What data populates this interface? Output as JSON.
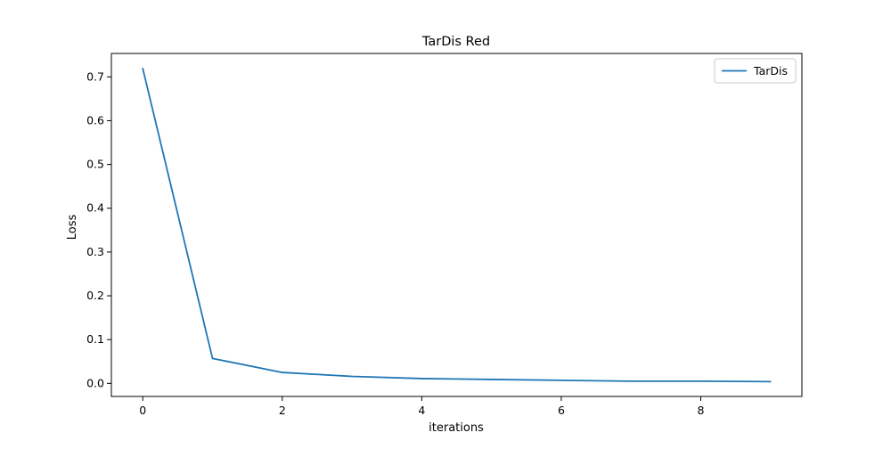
{
  "chart_data": {
    "type": "line",
    "title": "TarDis Red",
    "xlabel": "iterations",
    "ylabel": "Loss",
    "xlim": [
      -0.45,
      9.45
    ],
    "ylim": [
      -0.0298,
      0.7535
    ],
    "x_ticks": [
      0,
      2,
      4,
      6,
      8
    ],
    "x_tick_labels": [
      "0",
      "2",
      "4",
      "6",
      "8"
    ],
    "y_ticks": [
      0.0,
      0.1,
      0.2,
      0.3,
      0.4,
      0.5,
      0.6,
      0.7
    ],
    "y_tick_labels": [
      "0.0",
      "0.1",
      "0.2",
      "0.3",
      "0.4",
      "0.5",
      "0.6",
      "0.7"
    ],
    "grid": false,
    "legend_position": "top-right",
    "x": [
      0,
      1,
      2,
      3,
      4,
      5,
      6,
      7,
      8,
      9
    ],
    "series": [
      {
        "name": "TarDis",
        "color": "#1f77b4",
        "values": [
          0.719,
          0.057,
          0.025,
          0.016,
          0.011,
          0.009,
          0.007,
          0.005,
          0.005,
          0.004
        ]
      }
    ]
  }
}
